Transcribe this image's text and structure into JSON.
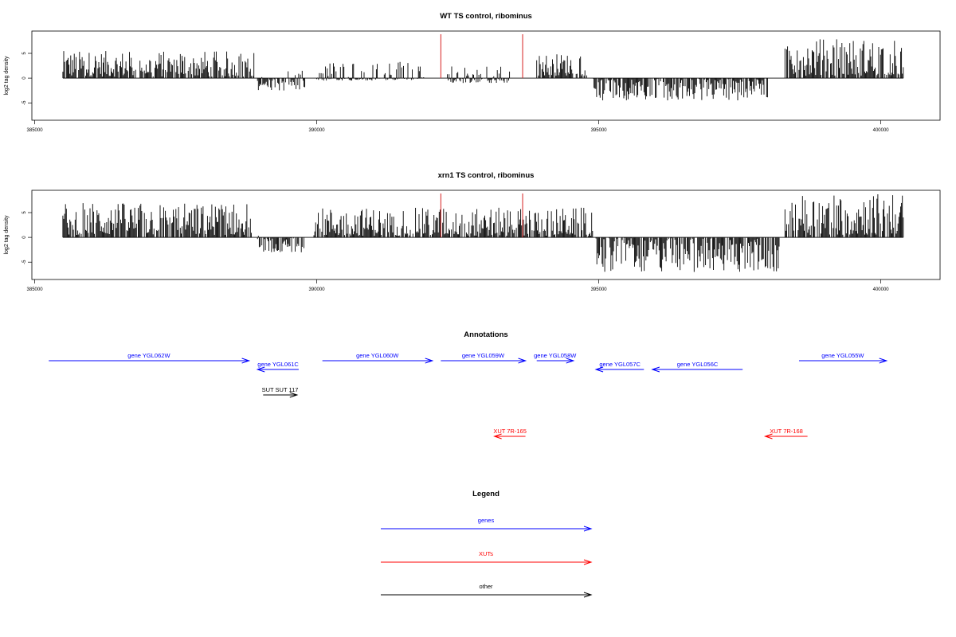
{
  "chart_data": [
    {
      "type": "bar",
      "title": "WT TS control, ribominus",
      "ylabel": "log2 tag density",
      "xlim": [
        384950,
        401050
      ],
      "ylim": [
        -8.5,
        9.5
      ],
      "xticks": [
        385000,
        390000,
        395000,
        400000
      ],
      "yticks": [
        -5,
        0,
        5
      ],
      "segments": [
        {
          "start": 385500,
          "end": 388900,
          "min": 0.3,
          "max": 5.5
        },
        {
          "start": 388950,
          "end": 389800,
          "min": -2.5,
          "max": 1.5
        },
        {
          "start": 390000,
          "end": 391900,
          "min": -0.5,
          "max": 3.5
        },
        {
          "start": 392300,
          "end": 393500,
          "min": -1.0,
          "max": 2.5
        },
        {
          "start": 393900,
          "end": 394800,
          "min": 0.5,
          "max": 5.0
        },
        {
          "start": 394900,
          "end": 398000,
          "min": -4.5,
          "max": 0.2
        },
        {
          "start": 398300,
          "end": 400400,
          "min": 0.5,
          "max": 8.0
        }
      ],
      "markers": [
        392200,
        393650
      ],
      "marker_color": "#d62020",
      "bar_color": "#000000"
    },
    {
      "type": "bar",
      "title": "xrn1 TS control, ribominus",
      "ylabel": "log2 tag density",
      "xlim": [
        384950,
        401050
      ],
      "ylim": [
        -8.5,
        9.5
      ],
      "xticks": [
        385000,
        390000,
        395000,
        400000
      ],
      "yticks": [
        -5,
        0,
        5
      ],
      "segments": [
        {
          "start": 385500,
          "end": 388850,
          "min": 0.5,
          "max": 7.0
        },
        {
          "start": 388950,
          "end": 389800,
          "min": -3.0,
          "max": 1.0
        },
        {
          "start": 389950,
          "end": 394900,
          "min": 0.3,
          "max": 6.0
        },
        {
          "start": 394950,
          "end": 398200,
          "min": -7.0,
          "max": 0.2
        },
        {
          "start": 398300,
          "end": 400400,
          "min": 0.5,
          "max": 9.0
        }
      ],
      "markers": [
        392200,
        393650
      ],
      "marker_color": "#d62020",
      "bar_color": "#000000"
    }
  ],
  "annotations": {
    "title": "Annotations",
    "items": [
      {
        "label": "gene YGL062W",
        "start": 385250,
        "end": 388800,
        "row": 0,
        "color": "#0000ff"
      },
      {
        "label": "gene YGL061C",
        "start": 389680,
        "end": 388950,
        "row": 1,
        "color": "#0000ff"
      },
      {
        "label": "gene YGL060W",
        "start": 390100,
        "end": 392050,
        "row": 0,
        "color": "#0000ff"
      },
      {
        "label": "gene YGL059W",
        "start": 392200,
        "end": 393700,
        "row": 0,
        "color": "#0000ff"
      },
      {
        "label": "gene YGL058W",
        "start": 393900,
        "end": 394550,
        "row": 0,
        "color": "#0000ff"
      },
      {
        "label": "gene YGL057C",
        "start": 395800,
        "end": 394950,
        "row": 1,
        "color": "#0000ff"
      },
      {
        "label": "gene YGL056C",
        "start": 397550,
        "end": 395950,
        "row": 1,
        "color": "#0000ff"
      },
      {
        "label": "gene YGL055W",
        "start": 398550,
        "end": 400100,
        "row": 0,
        "color": "#0000ff"
      },
      {
        "label": "SUT SUT 117",
        "start": 389050,
        "end": 389650,
        "row": 2,
        "color": "#000000"
      },
      {
        "label": "XUT 7R-165",
        "start": 393700,
        "end": 393150,
        "row": 4,
        "color": "#ff0000"
      },
      {
        "label": "XUT 7R-168",
        "start": 398700,
        "end": 397950,
        "row": 4,
        "color": "#ff0000"
      }
    ]
  },
  "legend": {
    "title": "Legend",
    "items": [
      {
        "label": "genes",
        "color": "#0000ff"
      },
      {
        "label": "XUTs",
        "color": "#ff0000"
      },
      {
        "label": "other",
        "color": "#000000"
      }
    ]
  }
}
